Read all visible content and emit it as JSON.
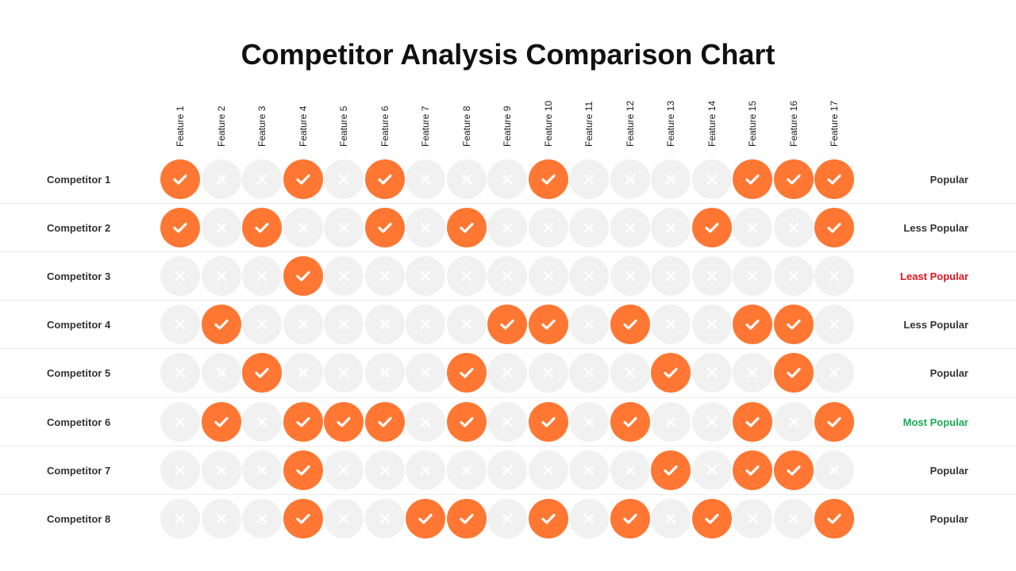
{
  "chart_data": {
    "type": "table",
    "title": "Competitor Analysis Comparison Chart",
    "features": [
      "Feature 1",
      "Feature 2",
      "Feature 3",
      "Feature 4",
      "Feature 5",
      "Feature 6",
      "Feature 7",
      "Feature 8",
      "Feature 9",
      "Feature 10",
      "Feature 11",
      "Feature 12",
      "Feature 13",
      "Feature 14",
      "Feature 15",
      "Feature 16",
      "Feature 17"
    ],
    "competitors": [
      {
        "name": "Competitor 1",
        "status": "Popular",
        "status_color": "#333333",
        "features": [
          1,
          0,
          0,
          1,
          0,
          1,
          0,
          0,
          0,
          1,
          0,
          0,
          0,
          0,
          1,
          1,
          1
        ]
      },
      {
        "name": "Competitor 2",
        "status": "Less Popular",
        "status_color": "#333333",
        "features": [
          1,
          0,
          1,
          0,
          0,
          1,
          0,
          1,
          0,
          0,
          0,
          0,
          0,
          1,
          0,
          0,
          1
        ]
      },
      {
        "name": "Competitor 3",
        "status": "Least Popular",
        "status_color": "#e0141e",
        "features": [
          0,
          0,
          0,
          1,
          0,
          0,
          0,
          0,
          0,
          0,
          0,
          0,
          0,
          0,
          0,
          0,
          0
        ]
      },
      {
        "name": "Competitor 4",
        "status": "Less Popular",
        "status_color": "#333333",
        "features": [
          0,
          1,
          0,
          0,
          0,
          0,
          0,
          0,
          1,
          1,
          0,
          1,
          0,
          0,
          1,
          1,
          0
        ]
      },
      {
        "name": "Competitor 5",
        "status": "Popular",
        "status_color": "#333333",
        "features": [
          0,
          0,
          1,
          0,
          0,
          0,
          0,
          1,
          0,
          0,
          0,
          0,
          1,
          0,
          0,
          1,
          0
        ]
      },
      {
        "name": "Competitor 6",
        "status": "Most Popular",
        "status_color": "#1aab55",
        "features": [
          0,
          1,
          0,
          1,
          1,
          1,
          0,
          1,
          0,
          1,
          0,
          1,
          0,
          0,
          1,
          0,
          1
        ]
      },
      {
        "name": "Competitor 7",
        "status": "Popular",
        "status_color": "#333333",
        "features": [
          0,
          0,
          0,
          1,
          0,
          0,
          0,
          0,
          0,
          0,
          0,
          0,
          1,
          0,
          1,
          1,
          0
        ]
      },
      {
        "name": "Competitor 8",
        "status": "Popular",
        "status_color": "#333333",
        "features": [
          0,
          0,
          0,
          1,
          0,
          0,
          1,
          1,
          0,
          1,
          0,
          1,
          0,
          1,
          0,
          0,
          1
        ]
      }
    ],
    "legend": {
      "yes": "check-icon",
      "no": "cross-icon"
    },
    "colors": {
      "yes": "#ff7733",
      "no": "#f1f1f1"
    }
  }
}
